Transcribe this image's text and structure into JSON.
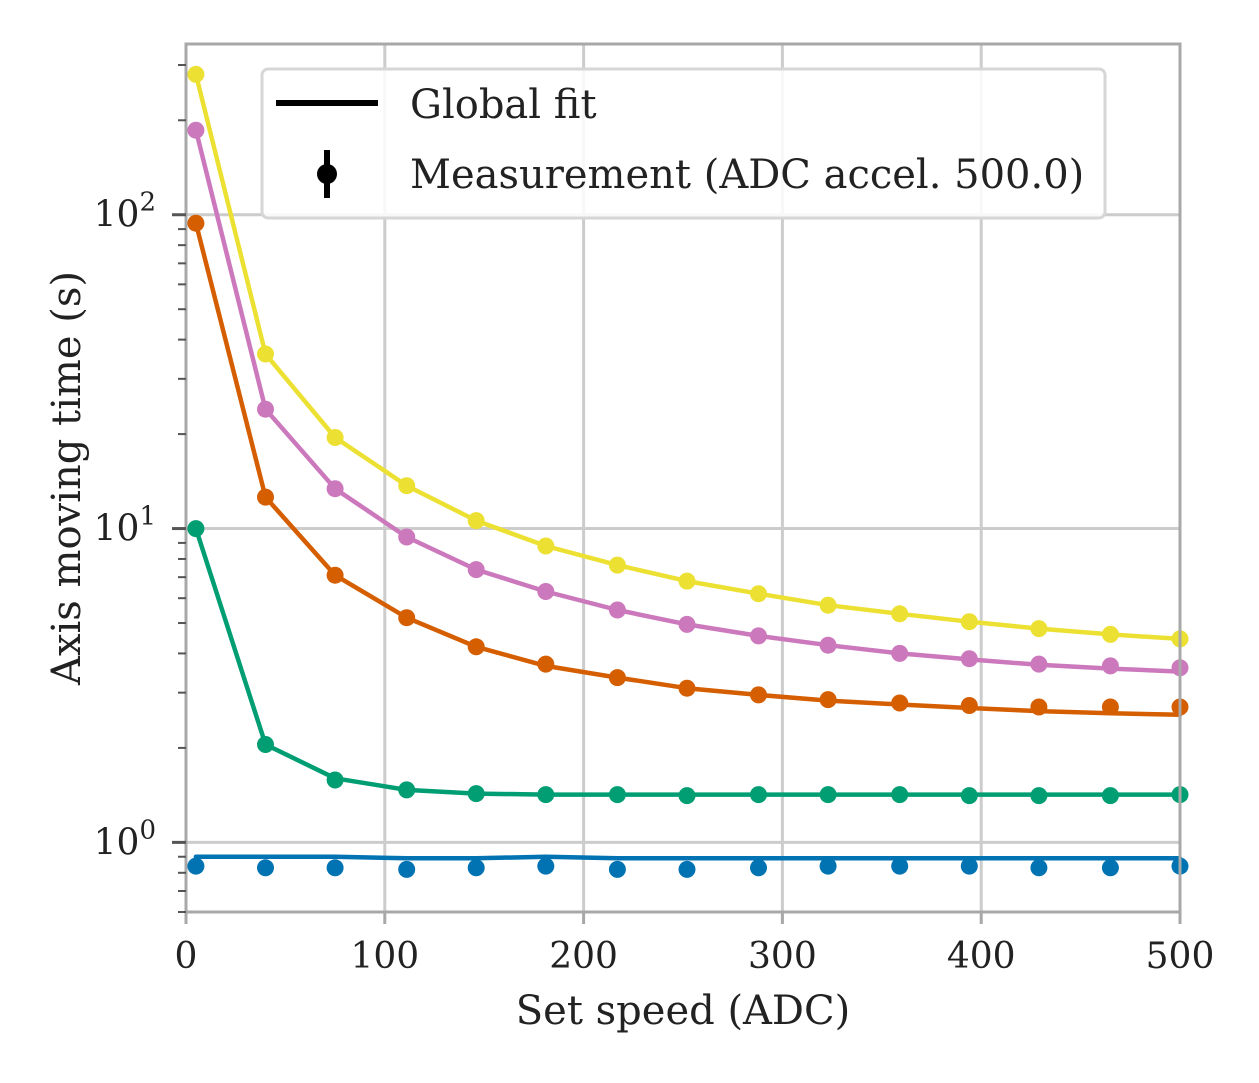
{
  "chart_data": {
    "type": "line",
    "title": "",
    "xlabel": "Set speed (ADC)",
    "ylabel": "Axis moving time (s)",
    "xlim": [
      0,
      500
    ],
    "ylim": [
      0.6,
      350
    ],
    "yscale": "log",
    "grid": true,
    "legend_position": "top-right",
    "x_ticks": [
      0,
      100,
      200,
      300,
      400,
      500
    ],
    "x_tick_labels": [
      "0",
      "100",
      "200",
      "300",
      "400",
      "500"
    ],
    "y_ticks": [
      1,
      10,
      100
    ],
    "y_tick_labels": [
      {
        "base": "10",
        "exp": "0"
      },
      {
        "base": "10",
        "exp": "1"
      },
      {
        "base": "10",
        "exp": "2"
      }
    ],
    "legend": [
      {
        "label": "Global fit",
        "marker": "line"
      },
      {
        "label": "Measurement (ADC accel. 500.0)",
        "marker": "errorbar"
      }
    ],
    "x": [
      5,
      40,
      75,
      111,
      146,
      181,
      217,
      252,
      288,
      323,
      359,
      394,
      429,
      465,
      500
    ],
    "series": [
      {
        "color": "#0173b2",
        "measured": [
          0.84,
          0.83,
          0.83,
          0.82,
          0.83,
          0.84,
          0.82,
          0.82,
          0.83,
          0.84,
          0.84,
          0.84,
          0.83,
          0.83,
          0.84
        ],
        "fit": [
          0.9,
          0.9,
          0.9,
          0.89,
          0.89,
          0.9,
          0.89,
          0.89,
          0.89,
          0.89,
          0.89,
          0.89,
          0.89,
          0.89,
          0.89
        ]
      },
      {
        "color": "#029e73",
        "measured": [
          10.0,
          2.05,
          1.58,
          1.47,
          1.43,
          1.42,
          1.42,
          1.41,
          1.42,
          1.42,
          1.42,
          1.41,
          1.41,
          1.41,
          1.42
        ],
        "fit": [
          10.0,
          2.05,
          1.6,
          1.47,
          1.43,
          1.42,
          1.42,
          1.42,
          1.42,
          1.42,
          1.42,
          1.42,
          1.42,
          1.42,
          1.42
        ]
      },
      {
        "color": "#d55e00",
        "measured": [
          94,
          12.6,
          7.1,
          5.2,
          4.2,
          3.7,
          3.35,
          3.1,
          2.95,
          2.85,
          2.78,
          2.73,
          2.7,
          2.7,
          2.7
        ],
        "fit": [
          94,
          12.6,
          7.1,
          5.2,
          4.2,
          3.65,
          3.35,
          3.1,
          2.95,
          2.83,
          2.75,
          2.68,
          2.62,
          2.58,
          2.55
        ]
      },
      {
        "color": "#cc78bc",
        "measured": [
          186,
          24,
          13.4,
          9.4,
          7.4,
          6.3,
          5.5,
          4.95,
          4.55,
          4.25,
          4.0,
          3.85,
          3.7,
          3.65,
          3.6
        ],
        "fit": [
          186,
          24,
          13.4,
          9.4,
          7.4,
          6.3,
          5.5,
          4.95,
          4.55,
          4.25,
          4.0,
          3.83,
          3.68,
          3.58,
          3.5
        ]
      },
      {
        "color": "#ece133",
        "measured": [
          280,
          36,
          19.5,
          13.7,
          10.6,
          8.8,
          7.65,
          6.8,
          6.2,
          5.7,
          5.35,
          5.05,
          4.8,
          4.6,
          4.45
        ],
        "fit": [
          280,
          36,
          19.5,
          13.7,
          10.6,
          8.8,
          7.65,
          6.8,
          6.2,
          5.7,
          5.35,
          5.05,
          4.8,
          4.6,
          4.45
        ]
      }
    ]
  }
}
